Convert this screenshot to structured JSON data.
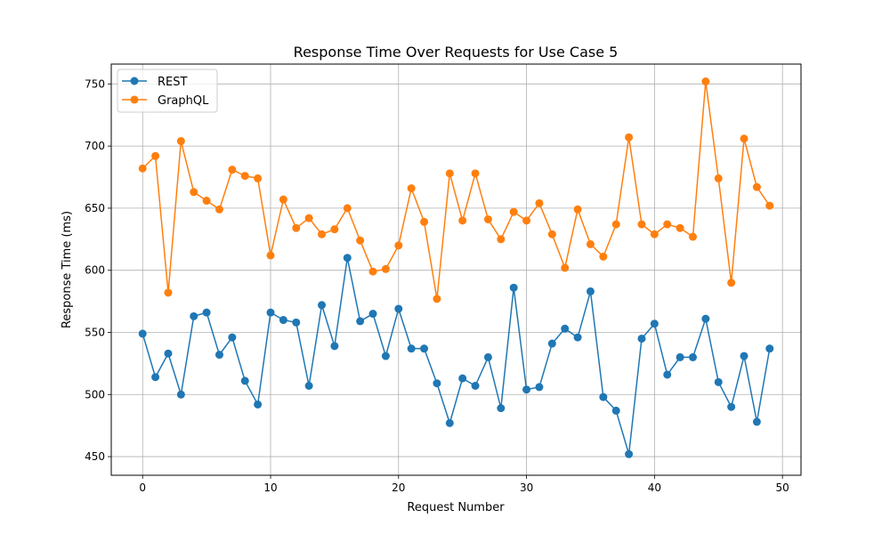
{
  "chart_data": {
    "type": "line",
    "title": "Response Time Over Requests for Use Case 5",
    "xlabel": "Request Number",
    "ylabel": "Response Time (ms)",
    "xlim": [
      -2.45,
      51.45
    ],
    "ylim": [
      435,
      766
    ],
    "xticks": [
      0,
      10,
      20,
      30,
      40,
      50
    ],
    "yticks": [
      450,
      500,
      550,
      600,
      650,
      700,
      750
    ],
    "grid": true,
    "legend_position": "upper-left",
    "x": [
      0,
      1,
      2,
      3,
      4,
      5,
      6,
      7,
      8,
      9,
      10,
      11,
      12,
      13,
      14,
      15,
      16,
      17,
      18,
      19,
      20,
      21,
      22,
      23,
      24,
      25,
      26,
      27,
      28,
      29,
      30,
      31,
      32,
      33,
      34,
      35,
      36,
      37,
      38,
      39,
      40,
      41,
      42,
      43,
      44,
      45,
      46,
      47,
      48,
      49
    ],
    "series": [
      {
        "name": "REST",
        "color": "#1f77b4",
        "marker": "circle",
        "values": [
          549,
          514,
          533,
          500,
          563,
          566,
          532,
          546,
          511,
          492,
          566,
          560,
          558,
          507,
          572,
          539,
          610,
          559,
          565,
          531,
          569,
          537,
          537,
          509,
          477,
          513,
          507,
          530,
          489,
          586,
          504,
          506,
          541,
          553,
          546,
          583,
          498,
          487,
          452,
          545,
          557,
          516,
          530,
          530,
          561,
          510,
          490,
          531,
          478,
          537
        ]
      },
      {
        "name": "GraphQL",
        "color": "#ff7f0e",
        "marker": "circle",
        "values": [
          682,
          692,
          582,
          704,
          663,
          656,
          649,
          681,
          676,
          674,
          612,
          657,
          634,
          642,
          629,
          633,
          650,
          624,
          599,
          601,
          620,
          666,
          639,
          577,
          678,
          640,
          678,
          641,
          625,
          647,
          640,
          654,
          629,
          602,
          649,
          621,
          611,
          637,
          707,
          637,
          629,
          637,
          634,
          627,
          752,
          674,
          590,
          706,
          667,
          652
        ]
      }
    ]
  }
}
